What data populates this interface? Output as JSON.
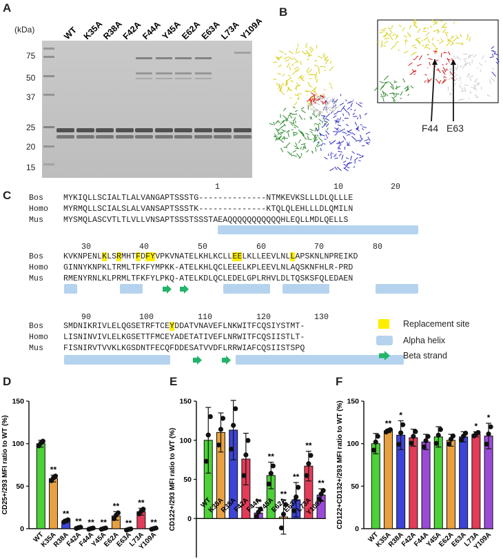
{
  "panels": {
    "A": {
      "letter": "A",
      "kda_label": "(kDa)",
      "lanes": [
        "WT",
        "K35A",
        "R38A",
        "F42A",
        "F44A",
        "Y45A",
        "E62A",
        "E63A",
        "L73A",
        "Y109A"
      ],
      "markers": [
        "75",
        "50",
        "37",
        "25",
        "20",
        "15"
      ]
    },
    "B": {
      "letter": "B",
      "labels": [
        "F44",
        "E63"
      ]
    },
    "C": {
      "letter": "C",
      "species": [
        "Bos",
        "Homo",
        "Mus"
      ],
      "block1": {
        "numbers": [
          "1",
          "10",
          "20"
        ],
        "bos": "MYKIQLLSCIALTLALVANGAPTSSSTG--------------NTMKEVKSLLLDLQLLLE",
        "homo": "MYRMQLLSCIALSLALVANSAPTSSSTK--------------KTQLQLEHLLLDLQMILN",
        "mus": "MYSMQLASCVTLTLVLLVNSAPTSSSTSSSTAEAQQQQQQQQQQQHLEQLLMDLQELLS"
      },
      "block2": {
        "numbers": [
          "30",
          "40",
          "50",
          "60",
          "70",
          "80"
        ],
        "bos_parts": [
          "KVKNPENL",
          "K",
          "LS",
          "R",
          "MHT",
          "F",
          "D",
          "FY",
          "VPKVNATELKHLKCLL",
          "EE",
          "LKLLEEVLNL",
          "L",
          "APSKNLNPREIKD"
        ],
        "homo": "GINNYKNPKLTRMLTFKFYMPKK-ATELKHLQCLEEELKPLEEVLNLAQSKNFHLR-PRD",
        "mus": "RMENYRNLKLPRMLTFKFYLPKQ-ATELKDLQCLEDELGPLRHVLDLTQSKSFQLEDAEN"
      },
      "block3": {
        "numbers": [
          "90",
          "100",
          "110",
          "120",
          "130"
        ],
        "bos_parts": [
          "SMDNIKRIVLELQGSETRFTCE",
          "Y",
          "DDATVNAVEFLNKWITFCQSIYSTMT-"
        ],
        "homo": "LISNINVIVLELKGSETTFMCEYADETATIVEFLNRWITFCQSIISTLT-",
        "mus": "FISNIRVTVVKLKGSDNTFECQFDDESATVVDFLRRWIAFCQSIISTSPQ"
      },
      "legend": [
        "Replacement site",
        "Alpha helix",
        "Beta strand"
      ]
    },
    "D": {
      "letter": "D"
    },
    "E": {
      "letter": "E"
    },
    "F": {
      "letter": "F"
    }
  },
  "colors": {
    "green": "#4cd137",
    "orange": "#e8a040",
    "blue": "#3c44d8",
    "red": "#e23c58",
    "purple": "#9b4ad8",
    "helix": "#b5d3ee",
    "strand": "#22b46a",
    "highlight": "#ffee00"
  },
  "chart_data": [
    {
      "type": "bar",
      "panel": "D",
      "ylabel": "CD25+/293 MFI ratio to WT (%)",
      "categories": [
        "WT",
        "K35A",
        "R38A",
        "F42A",
        "F44A",
        "Y45A",
        "E62A",
        "E63A",
        "L73A",
        "Y109A"
      ],
      "values": [
        100,
        59,
        9,
        1,
        0,
        0,
        15,
        -1,
        20,
        0
      ],
      "errors": [
        4,
        4,
        2,
        1,
        1,
        1,
        5,
        1,
        4,
        1
      ],
      "colors": [
        "green",
        "orange",
        "blue",
        "red",
        "purple",
        "green",
        "orange",
        "blue",
        "red",
        "purple"
      ],
      "significance": [
        "",
        "**",
        "**",
        "**",
        "**",
        "**",
        "**",
        "**",
        "**",
        "**"
      ],
      "ylim": [
        0,
        150
      ],
      "yticks": [
        0,
        50,
        100,
        150
      ]
    },
    {
      "type": "bar",
      "panel": "E",
      "ylabel": "CD122+/293 MFI ratio to WT (%)",
      "categories": [
        "WT",
        "K35A",
        "R38A",
        "F42A",
        "F44A",
        "Y45A",
        "E62A",
        "E63A",
        "L73A",
        "Y109A"
      ],
      "values": [
        100,
        110,
        113,
        76,
        7,
        55,
        2,
        24,
        67,
        30
      ],
      "errors": [
        42,
        25,
        38,
        33,
        7,
        17,
        22,
        22,
        19,
        8
      ],
      "colors": [
        "green",
        "orange",
        "blue",
        "red",
        "purple",
        "green",
        "orange",
        "blue",
        "red",
        "purple"
      ],
      "significance": [
        "",
        "",
        "",
        "",
        "**",
        "**",
        "**",
        "**",
        "**",
        "**"
      ],
      "ylim": [
        -50,
        150
      ],
      "yticks": [
        0,
        50,
        100,
        150
      ]
    },
    {
      "type": "bar",
      "panel": "F",
      "ylabel": "CD122+CD132+/293 MFI ratio to WT (%)",
      "categories": [
        "WT",
        "K35A",
        "R38A",
        "F42A",
        "F44A",
        "Y45A",
        "E62A",
        "E63A",
        "L73A",
        "Y109A"
      ],
      "values": [
        100,
        115,
        110,
        107,
        102,
        108,
        104,
        108,
        111,
        109
      ],
      "errors": [
        12,
        2,
        17,
        10,
        9,
        12,
        7,
        6,
        3,
        15
      ],
      "colors": [
        "green",
        "orange",
        "blue",
        "red",
        "purple",
        "green",
        "orange",
        "blue",
        "red",
        "purple"
      ],
      "significance": [
        "",
        "**",
        "*",
        "",
        "",
        "",
        "",
        "",
        "*",
        "*"
      ],
      "ylim": [
        0,
        150
      ],
      "yticks": [
        0,
        50,
        100,
        150
      ]
    }
  ]
}
